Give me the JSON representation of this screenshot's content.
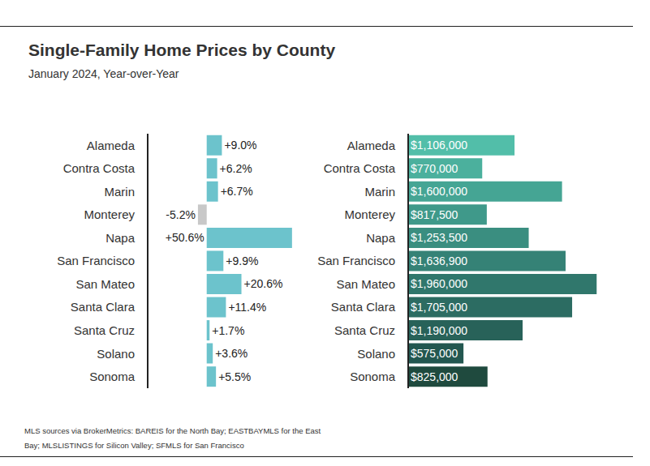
{
  "title": "Single-Family Home Prices by County",
  "subtitle": "January 2024, Year-over-Year",
  "source": "MLS sources via BrokerMetrics: BAREIS for the North Bay; EASTBAYMLS for the East Bay; MLSLISTINGS for Silicon Valley; SFMLS for San Francisco",
  "chart_data": [
    {
      "type": "bar",
      "orientation": "horizontal",
      "categories": [
        "Alameda",
        "Contra Costa",
        "Marin",
        "Monterey",
        "Napa",
        "San Francisco",
        "San Mateo",
        "Santa Clara",
        "Santa Cruz",
        "Solano",
        "Sonoma"
      ],
      "values": [
        9.0,
        6.2,
        6.7,
        -5.2,
        50.6,
        9.9,
        20.6,
        11.4,
        1.7,
        3.6,
        5.5
      ],
      "value_labels": [
        "+9.0%",
        "+6.2%",
        "+6.7%",
        "-5.2%",
        "+50.6%",
        "+9.9%",
        "+20.6%",
        "+11.4%",
        "+1.7%",
        "+3.6%",
        "+5.5%"
      ],
      "data_labels": true,
      "colors": [
        "#6cc3cc",
        "#6cc3cc",
        "#6cc3cc",
        "#c8c8c8",
        "#6cc3cc",
        "#6cc3cc",
        "#6cc3cc",
        "#6cc3cc",
        "#6cc3cc",
        "#6cc3cc",
        "#6cc3cc"
      ],
      "xlim": [
        -35,
        55
      ],
      "tick_labels": "y"
    },
    {
      "type": "bar",
      "orientation": "horizontal",
      "categories": [
        "Alameda",
        "Contra Costa",
        "Marin",
        "Monterey",
        "Napa",
        "San Francisco",
        "San Mateo",
        "Santa Clara",
        "Santa Cruz",
        "Solano",
        "Sonoma"
      ],
      "values": [
        1106000,
        770000,
        1600000,
        817500,
        1253500,
        1636900,
        1960000,
        1705000,
        1190000,
        575000,
        825000
      ],
      "value_labels": [
        "$1,106,000",
        "$770,000",
        "$1,600,000",
        "$817,500",
        "$1,253,500",
        "$1,636,900",
        "$1,960,000",
        "$1,705,000",
        "$1,190,000",
        "$575,000",
        "$825,000"
      ],
      "data_labels": true,
      "colors": [
        "#52bea9",
        "#4bb09d",
        "#45a594",
        "#3f998a",
        "#3a8e80",
        "#358276",
        "#30776c",
        "#2c6c62",
        "#286259",
        "#235750",
        "#1f4a3e"
      ],
      "xlim": [
        0,
        2000000
      ],
      "tick_labels": "y"
    }
  ]
}
